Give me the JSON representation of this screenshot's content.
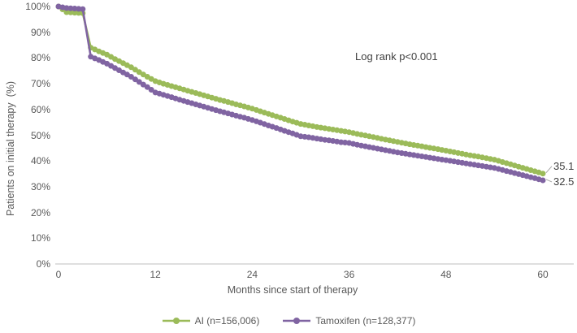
{
  "chart_data": {
    "type": "line",
    "xlabel": "Months since start of therapy",
    "ylabel": "Patients on initial therapy  (%)",
    "annotation": "Log rank p<0.001",
    "xlim": [
      0,
      60
    ],
    "ylim": [
      0,
      100
    ],
    "grid": false,
    "legend_position": "bottom",
    "axis_color": "#bfbfbf",
    "leader_line_color": "#a6a6a6",
    "text_color": "#595959",
    "annotation_color": "#404040",
    "x_ticks": [
      0,
      12,
      24,
      36,
      48,
      60
    ],
    "y_ticks": [
      {
        "value": 0,
        "label": "0%"
      },
      {
        "value": 10,
        "label": "10%"
      },
      {
        "value": 20,
        "label": "20%"
      },
      {
        "value": 30,
        "label": "30%"
      },
      {
        "value": 40,
        "label": "40%"
      },
      {
        "value": 50,
        "label": "50%"
      },
      {
        "value": 60,
        "label": "60%"
      },
      {
        "value": 70,
        "label": "70%"
      },
      {
        "value": 80,
        "label": "80%"
      },
      {
        "value": 90,
        "label": "90%"
      },
      {
        "value": 100,
        "label": "100%"
      }
    ],
    "x": [
      0,
      1,
      2,
      3,
      4,
      5,
      6,
      7,
      8,
      9,
      10,
      11,
      12,
      13,
      14,
      15,
      16,
      17,
      18,
      19,
      20,
      21,
      22,
      23,
      24,
      25,
      26,
      27,
      28,
      29,
      30,
      31,
      32,
      33,
      34,
      35,
      36,
      37,
      38,
      39,
      40,
      41,
      42,
      43,
      44,
      45,
      46,
      47,
      48,
      49,
      50,
      51,
      52,
      53,
      54,
      55,
      56,
      57,
      58,
      59,
      60
    ],
    "series": [
      {
        "name": "AI (n=156,006)",
        "key": "ai",
        "color": "#9bbb59",
        "end_label": "35.1",
        "values": [
          100,
          97.8,
          97.6,
          97.4,
          84.0,
          82.6,
          81.3,
          79.6,
          78.0,
          76.4,
          74.5,
          72.7,
          71.0,
          70.0,
          69.1,
          68.2,
          67.3,
          66.4,
          65.5,
          64.6,
          63.7,
          62.9,
          62.0,
          61.2,
          60.3,
          59.3,
          58.3,
          57.3,
          56.3,
          55.3,
          54.4,
          53.8,
          53.2,
          52.7,
          52.2,
          51.7,
          51.2,
          50.5,
          49.9,
          49.3,
          48.6,
          48.0,
          47.4,
          46.8,
          46.2,
          45.7,
          45.1,
          44.6,
          44.0,
          43.4,
          42.8,
          42.2,
          41.7,
          41.1,
          40.5,
          39.6,
          38.7,
          37.8,
          36.9,
          36.0,
          35.1
        ]
      },
      {
        "name": "Tamoxifen (n=128,377)",
        "key": "tamoxifen",
        "color": "#8064a2",
        "end_label": "32.5",
        "values": [
          100,
          99.4,
          99.2,
          99.0,
          80.5,
          79.2,
          77.8,
          76.1,
          74.4,
          72.7,
          70.7,
          68.7,
          66.6,
          65.7,
          64.8,
          63.8,
          62.9,
          62.0,
          61.1,
          60.2,
          59.3,
          58.5,
          57.6,
          56.8,
          55.9,
          54.9,
          53.8,
          52.8,
          51.7,
          50.7,
          49.6,
          49.2,
          48.7,
          48.2,
          47.8,
          47.3,
          47.0,
          46.3,
          45.7,
          45.1,
          44.5,
          43.9,
          43.3,
          42.8,
          42.3,
          41.8,
          41.3,
          40.8,
          40.3,
          39.8,
          39.3,
          38.8,
          38.3,
          37.8,
          37.3,
          36.5,
          35.7,
          34.9,
          34.1,
          33.3,
          32.5
        ]
      }
    ]
  }
}
